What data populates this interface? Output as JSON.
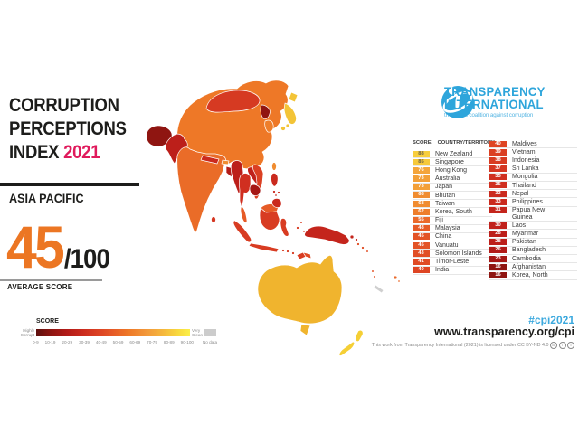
{
  "title": {
    "line1": "CORRUPTION",
    "line2": "PERCEPTIONS",
    "line3": "INDEX",
    "year": "2021",
    "region": "ASIA PACIFIC"
  },
  "average": {
    "score": "45",
    "denominator": "/100",
    "label": "AVERAGE SCORE"
  },
  "legend": {
    "title": "SCORE",
    "left_label_line1": "Highly",
    "left_label_line2": "Corrupt",
    "right_label_line1": "Very",
    "right_label_line2": "Clean",
    "ticks": [
      "0-9",
      "10-19",
      "20-29",
      "30-39",
      "40-49",
      "50-59",
      "60-69",
      "70-79",
      "80-89",
      "90-100"
    ],
    "no_data_label": "No data"
  },
  "logo": {
    "name_line1": "TRANSPARENCY",
    "name_line2": "INTERNATIONAL",
    "tagline": "the global coalition against corruption",
    "brand_color": "#2EA5DB"
  },
  "table": {
    "header_score": "SCORE",
    "header_country": "COUNTRY/TERRITORY",
    "left": [
      {
        "score": "88",
        "name": "New Zealand",
        "chip": "#F7CE3E",
        "text": "#6C6148"
      },
      {
        "score": "85",
        "name": "Singapore",
        "chip": "#F6C93B",
        "text": "#6C6148"
      },
      {
        "score": "76",
        "name": "Hong Kong",
        "chip": "#F4A53B",
        "text": "#FFFFFF"
      },
      {
        "score": "73",
        "name": "Australia",
        "chip": "#F3A038",
        "text": "#FFFFFF"
      },
      {
        "score": "73",
        "name": "Japan",
        "chip": "#F3A038",
        "text": "#FFFFFF"
      },
      {
        "score": "68",
        "name": "Bhutan",
        "chip": "#F08C30",
        "text": "#FFFFFF"
      },
      {
        "score": "68",
        "name": "Taiwan",
        "chip": "#F08C30",
        "text": "#FFFFFF"
      },
      {
        "score": "62",
        "name": "Korea, South",
        "chip": "#EE7E2B",
        "text": "#FFFFFF"
      },
      {
        "score": "55",
        "name": "Fiji",
        "chip": "#EA6A2B",
        "text": "#FFFFFF"
      },
      {
        "score": "48",
        "name": "Malaysia",
        "chip": "#E65B27",
        "text": "#FFFFFF"
      },
      {
        "score": "45",
        "name": "China",
        "chip": "#E35326",
        "text": "#FFFFFF"
      },
      {
        "score": "45",
        "name": "Vanuatu",
        "chip": "#E35326",
        "text": "#FFFFFF"
      },
      {
        "score": "43",
        "name": "Solomon Islands",
        "chip": "#E14E25",
        "text": "#FFFFFF"
      },
      {
        "score": "41",
        "name": "Timor-Leste",
        "chip": "#E04B25",
        "text": "#FFFFFF"
      },
      {
        "score": "40",
        "name": "India",
        "chip": "#DE4523",
        "text": "#FFFFFF"
      }
    ],
    "right": [
      {
        "score": "40",
        "name": "Maldives",
        "chip": "#DE4523",
        "text": "#FFFFFF"
      },
      {
        "score": "39",
        "name": "Vietnam",
        "chip": "#DB4023",
        "text": "#FFFFFF"
      },
      {
        "score": "38",
        "name": "Indonesia",
        "chip": "#D83C22",
        "text": "#FFFFFF"
      },
      {
        "score": "37",
        "name": "Sri Lanka",
        "chip": "#D53722",
        "text": "#FFFFFF"
      },
      {
        "score": "35",
        "name": "Mongolia",
        "chip": "#D02F20",
        "text": "#FFFFFF"
      },
      {
        "score": "35",
        "name": "Thailand",
        "chip": "#D02F20",
        "text": "#FFFFFF"
      },
      {
        "score": "33",
        "name": "Nepal",
        "chip": "#CA2A1E",
        "text": "#FFFFFF"
      },
      {
        "score": "33",
        "name": "Philippines",
        "chip": "#CA2A1E",
        "text": "#FFFFFF"
      },
      {
        "score": "31",
        "name": "Papua New\nGuinea",
        "chip": "#C4251C",
        "text": "#FFFFFF"
      },
      {
        "score": "30",
        "name": "Laos",
        "chip": "#C0211B",
        "text": "#FFFFFF"
      },
      {
        "score": "28",
        "name": "Myanmar",
        "chip": "#BC1F1A",
        "text": "#FFFFFF"
      },
      {
        "score": "28",
        "name": "Pakistan",
        "chip": "#BC1F1A",
        "text": "#FFFFFF"
      },
      {
        "score": "26",
        "name": "Bangladesh",
        "chip": "#B21B18",
        "text": "#FFFFFF"
      },
      {
        "score": "23",
        "name": "Cambodia",
        "chip": "#A51815",
        "text": "#FFFFFF"
      },
      {
        "score": "16",
        "name": "Afghanistan",
        "chip": "#8F1511",
        "text": "#FFFFFF"
      },
      {
        "score": "16",
        "name": "Korea, North",
        "chip": "#8F1511",
        "text": "#FFFFFF"
      }
    ]
  },
  "map": {
    "colors": {
      "china": "#EE7827",
      "mongolia": "#D63A22",
      "afghanistan": "#8F1511",
      "pakistan": "#BC1F1A",
      "india": "#EA6C28",
      "nepal": "#CA2A1E",
      "bhutan": "#F08C30",
      "bangladesh": "#B21B18",
      "sri_lanka": "#D53722",
      "myanmar": "#BC1F1A",
      "thailand": "#D02F20",
      "laos": "#C0211B",
      "vietnam": "#DB4023",
      "cambodia": "#A51815",
      "malaysia": "#E65B27",
      "indonesia": "#D83C22",
      "philippines": "#CA2A1E",
      "taiwan": "#F08C30",
      "north_korea": "#8F1511",
      "south_korea": "#EE7E2B",
      "japan": "#F3C437",
      "timor_leste": "#E04B25",
      "papua_new_guinea": "#C4251C",
      "solomon_islands": "#E14E25",
      "vanuatu": "#E35326",
      "fiji": "#EA6A2B",
      "new_caledonia": "#CFCFCF",
      "australia": "#F0B42E",
      "new_zealand": "#F5CF35"
    }
  },
  "footer": {
    "hashtag": "#cpi2021",
    "url": "www.transparency.org/cpi",
    "license": "This work from Transparency International (2021) is licensed under CC BY-ND 4.0"
  },
  "chart_data": {
    "type": "heatmap",
    "subtype": "choropleth-map",
    "title": "Corruption Perceptions Index 2021 - Asia Pacific",
    "region_average": 45,
    "scale_range": [
      0,
      100
    ],
    "scale_bins": [
      "0-9",
      "10-19",
      "20-29",
      "30-39",
      "40-49",
      "50-59",
      "60-69",
      "70-79",
      "80-89",
      "90-100",
      "No data"
    ],
    "entries": [
      {
        "territory": "New Zealand",
        "score": 88
      },
      {
        "territory": "Singapore",
        "score": 85
      },
      {
        "territory": "Hong Kong",
        "score": 76
      },
      {
        "territory": "Australia",
        "score": 73
      },
      {
        "territory": "Japan",
        "score": 73
      },
      {
        "territory": "Bhutan",
        "score": 68
      },
      {
        "territory": "Taiwan",
        "score": 68
      },
      {
        "territory": "Korea, South",
        "score": 62
      },
      {
        "territory": "Fiji",
        "score": 55
      },
      {
        "territory": "Malaysia",
        "score": 48
      },
      {
        "territory": "China",
        "score": 45
      },
      {
        "territory": "Vanuatu",
        "score": 45
      },
      {
        "territory": "Solomon Islands",
        "score": 43
      },
      {
        "territory": "Timor-Leste",
        "score": 41
      },
      {
        "territory": "India",
        "score": 40
      },
      {
        "territory": "Maldives",
        "score": 40
      },
      {
        "territory": "Vietnam",
        "score": 39
      },
      {
        "territory": "Indonesia",
        "score": 38
      },
      {
        "territory": "Sri Lanka",
        "score": 37
      },
      {
        "territory": "Mongolia",
        "score": 35
      },
      {
        "territory": "Thailand",
        "score": 35
      },
      {
        "territory": "Nepal",
        "score": 33
      },
      {
        "territory": "Philippines",
        "score": 33
      },
      {
        "territory": "Papua New Guinea",
        "score": 31
      },
      {
        "territory": "Laos",
        "score": 30
      },
      {
        "territory": "Myanmar",
        "score": 28
      },
      {
        "territory": "Pakistan",
        "score": 28
      },
      {
        "territory": "Bangladesh",
        "score": 26
      },
      {
        "territory": "Cambodia",
        "score": 23
      },
      {
        "territory": "Afghanistan",
        "score": 16
      },
      {
        "territory": "Korea, North",
        "score": 16
      }
    ]
  }
}
